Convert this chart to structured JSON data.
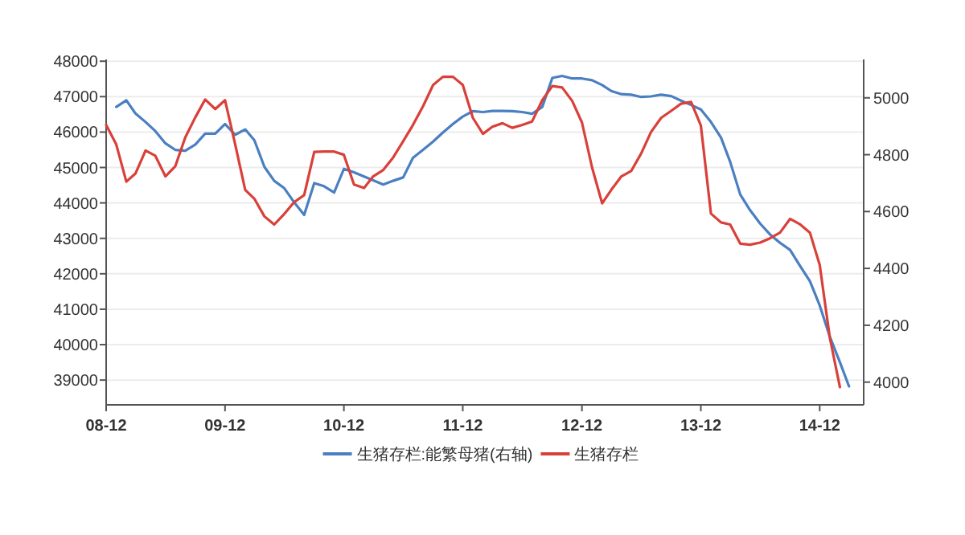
{
  "chart_data": {
    "type": "line",
    "xlim": [
      "2008-12",
      "2015-04-15"
    ],
    "xticks": [
      {
        "value": "2008-12",
        "label": "08-12"
      },
      {
        "value": "2009-12",
        "label": "09-12"
      },
      {
        "value": "2010-12",
        "label": "10-12"
      },
      {
        "value": "2011-12",
        "label": "11-12"
      },
      {
        "value": "2012-12",
        "label": "12-12"
      },
      {
        "value": "2013-12",
        "label": "13-12"
      },
      {
        "value": "2014-12",
        "label": "14-12"
      }
    ],
    "ylim": [
      38300,
      48050
    ],
    "yticks": [
      39000,
      40000,
      41000,
      42000,
      43000,
      44000,
      45000,
      46000,
      47000,
      48000
    ],
    "y2lim": [
      3920,
      5135
    ],
    "y2ticks": [
      4000,
      4200,
      4400,
      4600,
      4800,
      5000
    ],
    "grid": "y",
    "legend": "bottom",
    "marker": "none",
    "line_style": "solid",
    "series": [
      {
        "name": "生猪存栏:能繁母猪(右轴)",
        "color": "#4a7fc1",
        "axis": "y2",
        "x": [
          "2009-01",
          "2009-02",
          "2009-03",
          "2009-04",
          "2009-05",
          "2009-06",
          "2009-07",
          "2009-08",
          "2009-09",
          "2009-10",
          "2009-11",
          "2009-12",
          "2010-01",
          "2010-02",
          "2010-03",
          "2010-04",
          "2010-05",
          "2010-06",
          "2010-07",
          "2010-08",
          "2010-09",
          "2010-10",
          "2010-11",
          "2010-12",
          "2011-01",
          "2011-02",
          "2011-03",
          "2011-04",
          "2011-05",
          "2011-06",
          "2011-07",
          "2011-08",
          "2011-09",
          "2011-10",
          "2011-11",
          "2011-12",
          "2012-01",
          "2012-02",
          "2012-03",
          "2012-04",
          "2012-05",
          "2012-06",
          "2012-07",
          "2012-08",
          "2012-09",
          "2012-10",
          "2012-11",
          "2012-12",
          "2013-01",
          "2013-02",
          "2013-03",
          "2013-04",
          "2013-05",
          "2013-06",
          "2013-07",
          "2013-08",
          "2013-09",
          "2013-10",
          "2013-11",
          "2013-12",
          "2014-01",
          "2014-02",
          "2014-03",
          "2014-04",
          "2014-05",
          "2014-06",
          "2014-07",
          "2014-08",
          "2014-09",
          "2014-10",
          "2014-11",
          "2014-12",
          "2015-01",
          "2015-02",
          "2015-03"
        ],
        "values": [
          4968,
          4991,
          4945,
          4915,
          4883,
          4840,
          4817,
          4814,
          4836,
          4874,
          4874,
          4908,
          4870,
          4889,
          4851,
          4757,
          4708,
          4682,
          4633,
          4588,
          4700,
          4689,
          4667,
          4750,
          4738,
          4723,
          4710,
          4695,
          4708,
          4720,
          4789,
          4817,
          4846,
          4878,
          4908,
          4934,
          4953,
          4950,
          4954,
          4954,
          4953,
          4950,
          4944,
          4968,
          5070,
          5077,
          5068,
          5068,
          5062,
          5045,
          5024,
          5013,
          5011,
          5003,
          5005,
          5011,
          5006,
          4990,
          4975,
          4959,
          4915,
          4860,
          4775,
          4660,
          4605,
          4558,
          4520,
          4490,
          4465,
          4410,
          4355,
          4270,
          4160,
          4070,
          3985
        ]
      },
      {
        "name": "生猪存栏",
        "color": "#d9403a",
        "x": [
          "2008-12",
          "2009-01",
          "2009-02",
          "2009-03",
          "2009-04",
          "2009-05",
          "2009-06",
          "2009-07",
          "2009-08",
          "2009-09",
          "2009-10",
          "2009-11",
          "2009-12",
          "2010-01",
          "2010-02",
          "2010-03",
          "2010-04",
          "2010-05",
          "2010-06",
          "2010-07",
          "2010-08",
          "2010-09",
          "2010-10",
          "2010-11",
          "2010-12",
          "2011-01",
          "2011-02",
          "2011-03",
          "2011-04",
          "2011-05",
          "2011-06",
          "2011-07",
          "2011-08",
          "2011-09",
          "2011-10",
          "2011-11",
          "2011-12",
          "2012-01",
          "2012-02",
          "2012-03",
          "2012-04",
          "2012-05",
          "2012-06",
          "2012-07",
          "2012-08",
          "2012-09",
          "2012-10",
          "2012-11",
          "2012-12",
          "2013-01",
          "2013-02",
          "2013-03",
          "2013-04",
          "2013-05",
          "2013-06",
          "2013-07",
          "2013-08",
          "2013-09",
          "2013-10",
          "2013-11",
          "2013-12",
          "2014-01",
          "2014-02",
          "2014-03",
          "2014-04",
          "2014-05",
          "2014-06",
          "2014-07",
          "2014-08",
          "2014-09",
          "2014-10",
          "2014-11",
          "2014-12",
          "2015-01",
          "2015-02"
        ],
        "values": [
          46200,
          45650,
          44600,
          44830,
          45480,
          45330,
          44750,
          45030,
          45850,
          46420,
          46920,
          46650,
          46900,
          45660,
          44370,
          44120,
          43620,
          43390,
          43690,
          44020,
          44220,
          45440,
          45450,
          45450,
          45360,
          44520,
          44420,
          44750,
          44930,
          45280,
          45740,
          46200,
          46730,
          47330,
          47560,
          47560,
          47330,
          46400,
          45950,
          46150,
          46250,
          46120,
          46200,
          46300,
          46900,
          47300,
          47260,
          46880,
          46270,
          45000,
          43990,
          44370,
          44750,
          44900,
          45400,
          46000,
          46400,
          46600,
          46800,
          46850,
          46190,
          43700,
          43450,
          43390,
          42850,
          42820,
          42880,
          43000,
          43160,
          43550,
          43400,
          43160,
          42250,
          40200,
          38800
        ]
      }
    ]
  }
}
